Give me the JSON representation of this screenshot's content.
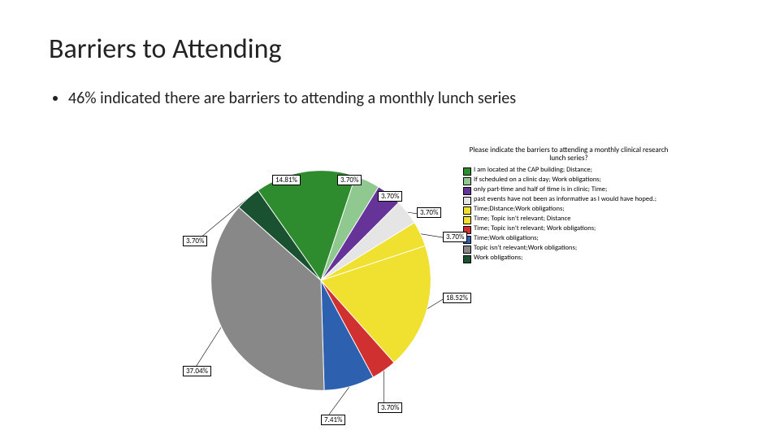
{
  "title": "Barriers to Attending",
  "bullet": "46% indicated there are barriers to attending a monthly lunch series",
  "chart": {
    "type": "pie",
    "question": "Please indicate the barriers to attending a monthly clinical research lunch series?",
    "background_color": "#ffffff",
    "label_fontsize": 9,
    "legend_fontsize": 8.5,
    "start_angle_deg": -125,
    "slices": [
      {
        "value": 14.81,
        "label": "14.81%",
        "color": "#2e8b2e",
        "legend": "I am located at the CAP building; Distance;"
      },
      {
        "value": 3.7,
        "label": "3.70%",
        "color": "#8fc98f",
        "legend": "If scheduled on a clinic day; Work obligations;"
      },
      {
        "value": 3.7,
        "label": "3.70%",
        "color": "#663399",
        "legend": "only part-time and half of time is in clinic; Time;"
      },
      {
        "value": 3.7,
        "label": "3.70%",
        "color": "#e5e5e5",
        "legend": "past events have not been as informative as I would have hoped.;"
      },
      {
        "value": 3.7,
        "label": "3.70%",
        "color": "#f0e030",
        "legend": "Time;Distance;Work obligations;"
      },
      {
        "value": 18.52,
        "label": "18.52%",
        "color": "#f0e030",
        "legend": "Time; Topic isn't relevant; Distance"
      },
      {
        "value": 3.7,
        "label": "3.70%",
        "color": "#d03030",
        "legend": "Time; Topic isn't relevant; Work obligations;"
      },
      {
        "value": 7.41,
        "label": "7.41%",
        "color": "#2e60b0",
        "legend": "Time;Work obligations;"
      },
      {
        "value": 37.04,
        "label": "37.04%",
        "color": "#888888",
        "legend": "Topic isn't relevant;Work obligations;"
      },
      {
        "value": 3.7,
        "label": "3.70%",
        "color": "#1a5130",
        "legend": "Work obligations;"
      }
    ]
  }
}
